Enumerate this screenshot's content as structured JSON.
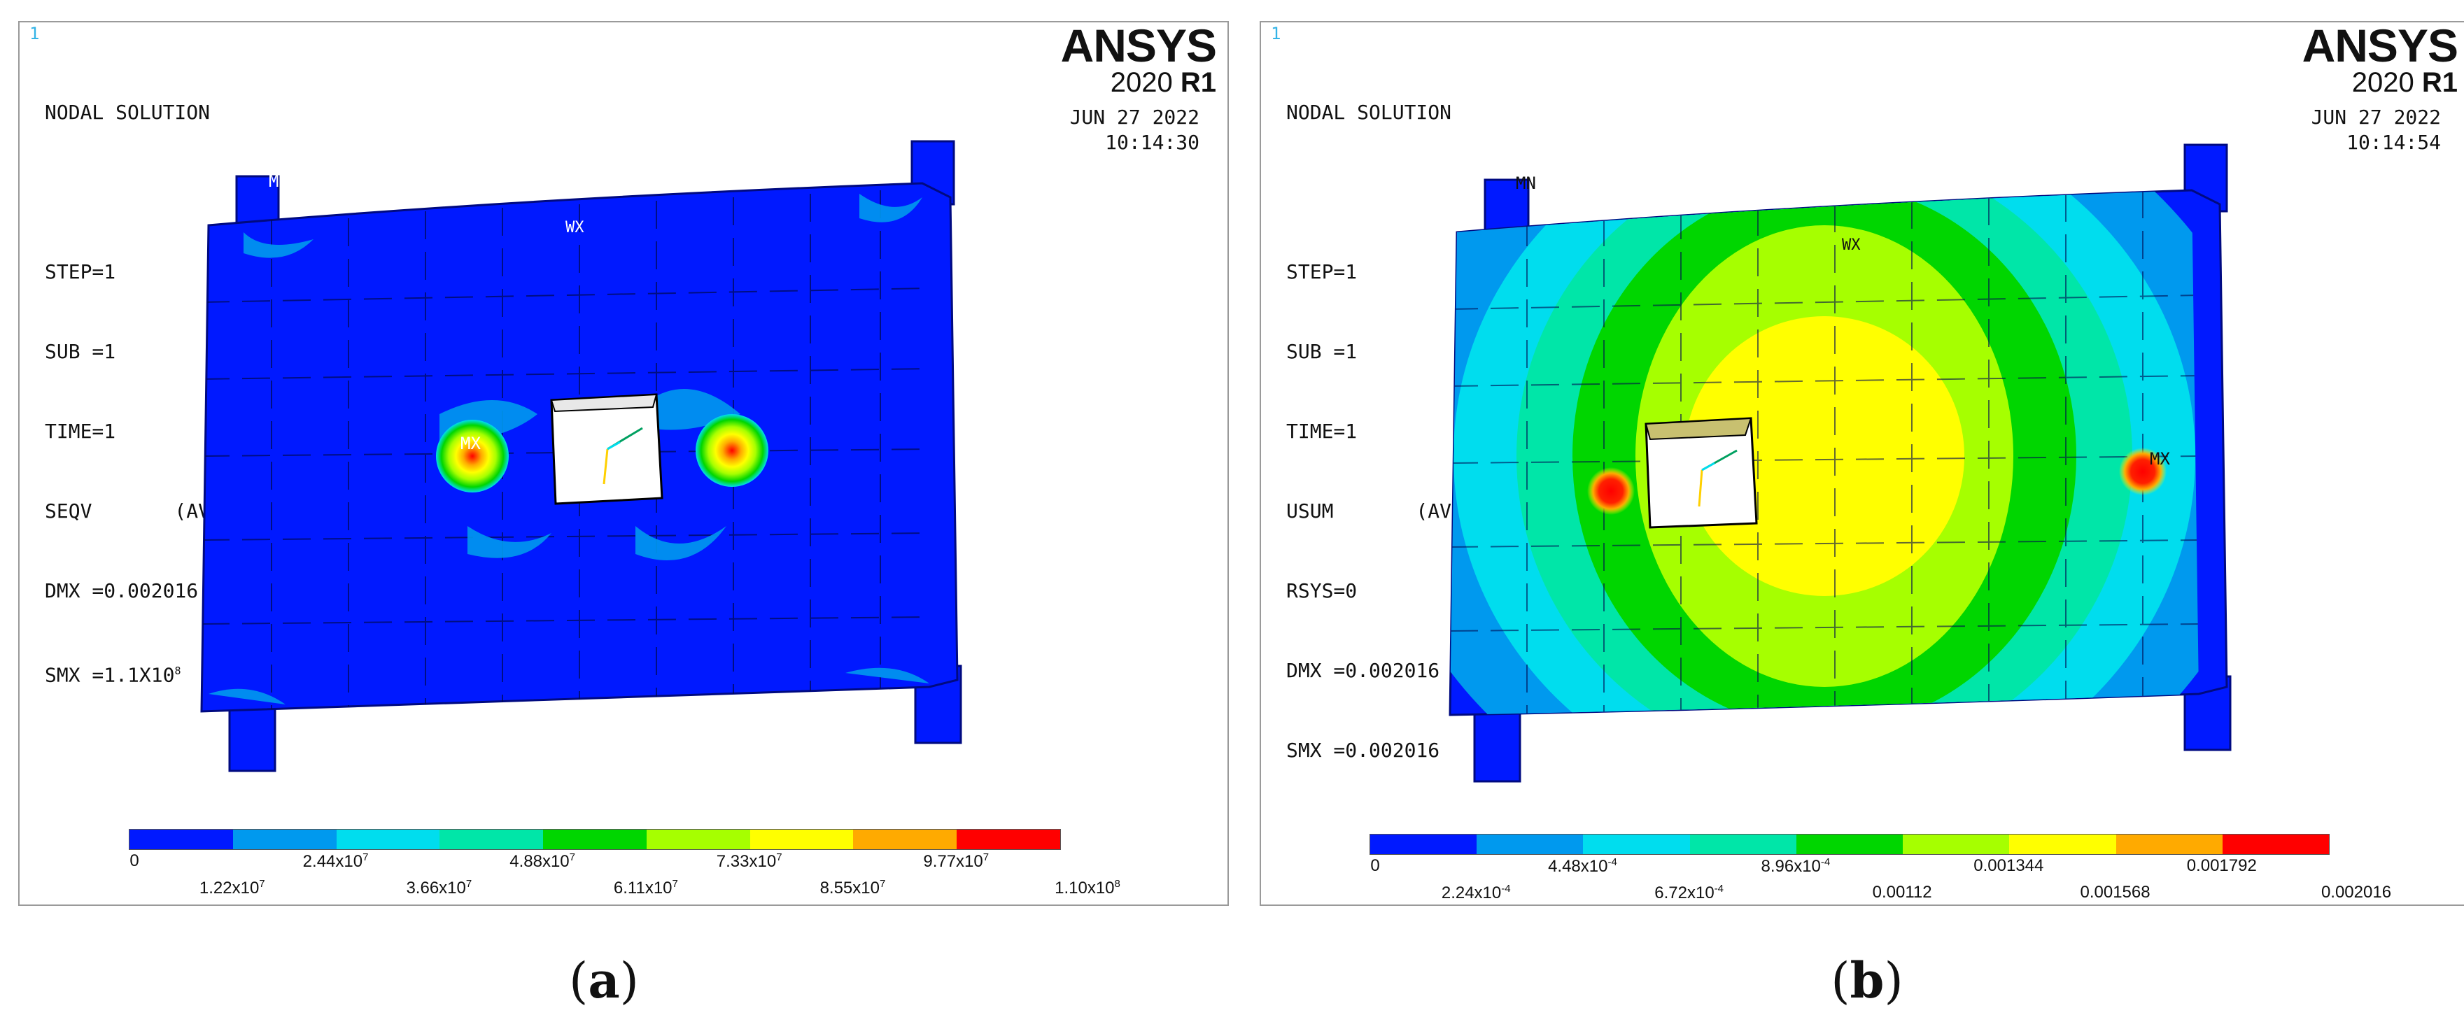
{
  "panels": [
    {
      "id": "a",
      "window_number": "1",
      "info_lines": [
        "NODAL SOLUTION",
        "",
        "STEP=1",
        "SUB =1",
        "TIME=1",
        "SEQV       (AVG)",
        "DMX =0.002016",
        "SMX =1.1X10"
      ],
      "smx_exp": "8",
      "brand": "ANSYS",
      "version_num": "2020",
      "version_rel": "R1",
      "date": "JUN 27 2022",
      "time": "10:14:30",
      "markers": {
        "mn": "MN",
        "mx1": "MX",
        "mx2": "MX",
        "triad": "WX"
      },
      "legend": {
        "colors": [
          "#0019ff",
          "#0099ee",
          "#00ddee",
          "#00e6a8",
          "#00d600",
          "#a6ff00",
          "#ffff00",
          "#ffaa00",
          "#ff0000"
        ],
        "top_labels": [
          {
            "m": "0",
            "e": ""
          },
          {
            "m": "2.44x10",
            "e": "7"
          },
          {
            "m": "4.88x10",
            "e": "7"
          },
          {
            "m": "7.33x10",
            "e": "7"
          },
          {
            "m": "9.77x10",
            "e": "7"
          }
        ],
        "bottom_labels": [
          {
            "m": "1.22x10",
            "e": "7"
          },
          {
            "m": "3.66x10",
            "e": "7"
          },
          {
            "m": "6.11x10",
            "e": "7"
          },
          {
            "m": "8.55x10",
            "e": "7"
          },
          {
            "m": "1.10x10",
            "e": "8"
          }
        ]
      },
      "caption_letter": "a"
    },
    {
      "id": "b",
      "window_number": "1",
      "info_lines": [
        "NODAL SOLUTION",
        "",
        "STEP=1",
        "SUB =1",
        "TIME=1",
        "USUM       (AVG)",
        "RSYS=0",
        "DMX =0.002016",
        "SMX =0.002016"
      ],
      "smx_exp": "",
      "brand": "ANSYS",
      "version_num": "2020",
      "version_rel": "R1",
      "date": "JUN 27 2022",
      "time": "10:14:54",
      "markers": {
        "mn": "MN",
        "mx1": "MX",
        "mx2": "MX",
        "triad": "WX"
      },
      "legend": {
        "colors": [
          "#0019ff",
          "#0099ee",
          "#00ddee",
          "#00e6a8",
          "#00d600",
          "#a6ff00",
          "#ffff00",
          "#ffaa00",
          "#ff0000"
        ],
        "top_labels": [
          {
            "m": "0",
            "e": ""
          },
          {
            "m": "4.48x10",
            "e": "-4"
          },
          {
            "m": "8.96x10",
            "e": "-4"
          },
          {
            "m": "0.001344",
            "e": ""
          },
          {
            "m": "0.001792",
            "e": ""
          }
        ],
        "bottom_labels": [
          {
            "m": "2.24x10",
            "e": "-4"
          },
          {
            "m": "6.72x10",
            "e": "-4"
          },
          {
            "m": "0.00112",
            "e": ""
          },
          {
            "m": "0.001568",
            "e": ""
          },
          {
            "m": "0.002016",
            "e": ""
          }
        ]
      },
      "caption_letter": "b"
    }
  ]
}
